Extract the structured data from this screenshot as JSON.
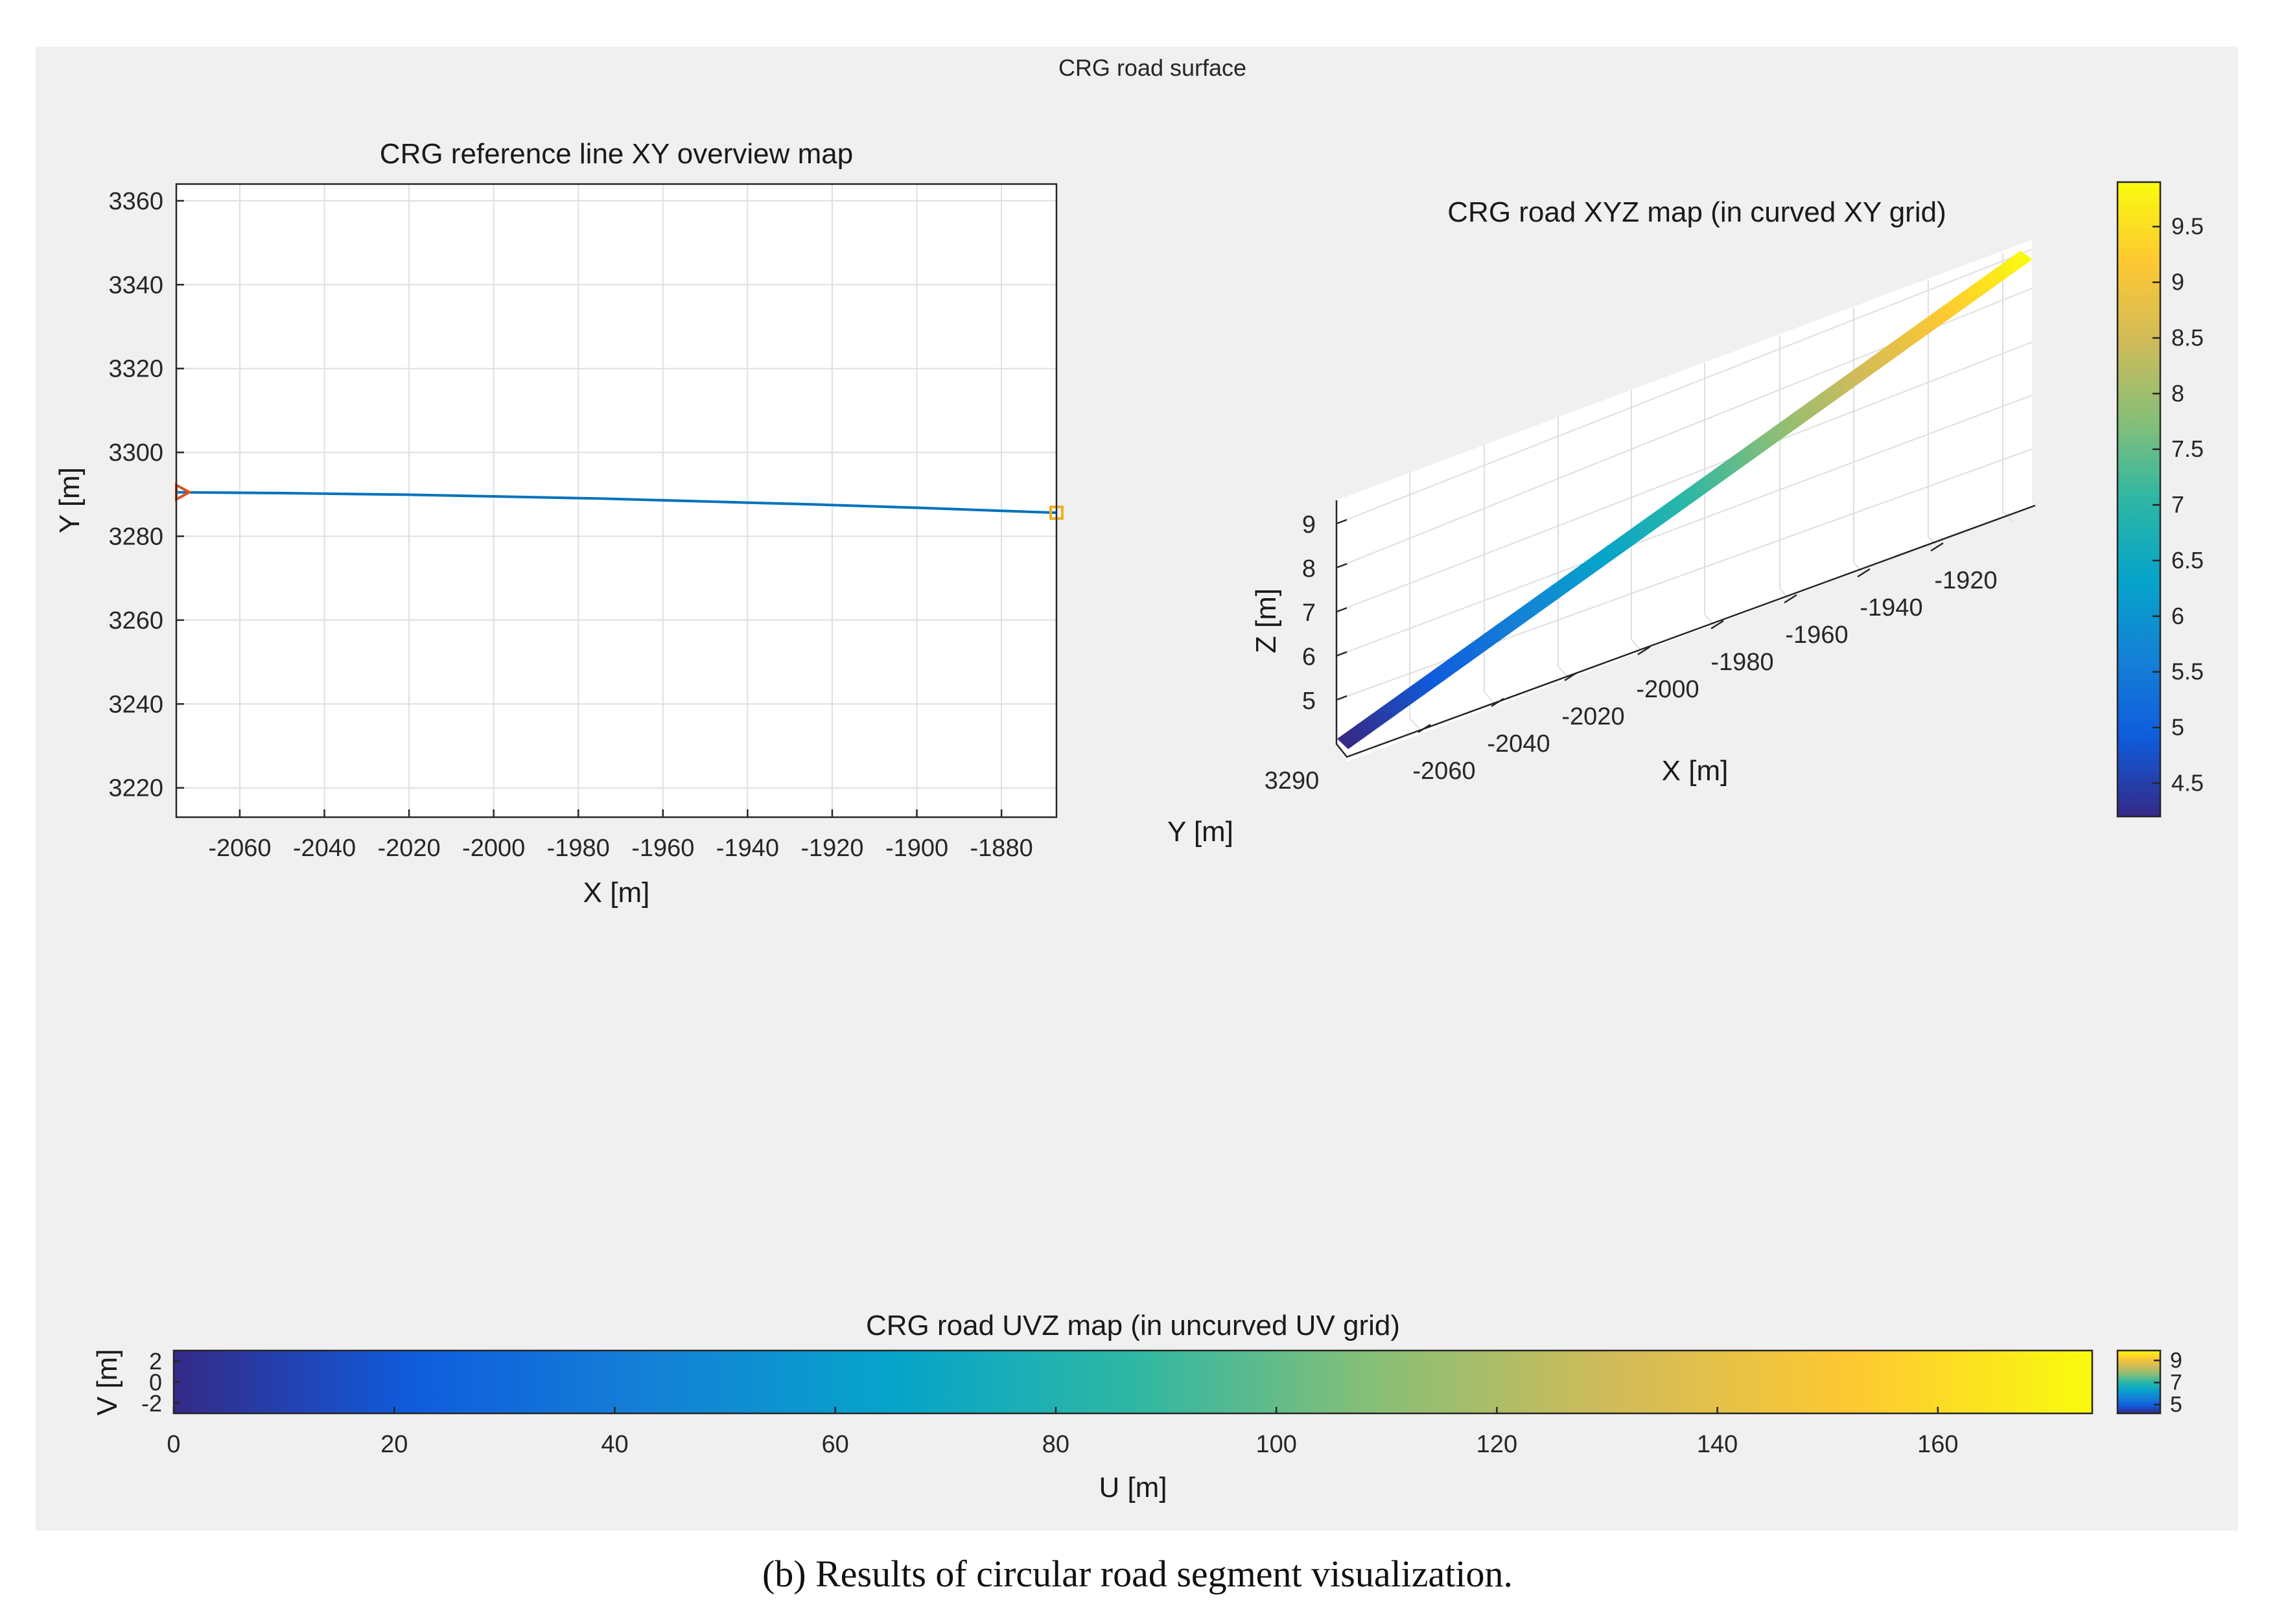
{
  "figure": {
    "window_title": "CRG road surface",
    "caption": "(b)  Results of circular road segment visualization."
  },
  "colors": {
    "panel_bg": "#f0f0f0",
    "axes_bg": "#ffffff",
    "grid": "#dfdfdf",
    "axis": "#262626",
    "line": "#0072bd",
    "start_marker": "#d95319",
    "end_marker": "#edb120"
  },
  "colormap_parula": [
    "#352a87",
    "#0f5cdd",
    "#1481d6",
    "#06a4ca",
    "#2eb7a4",
    "#87bf77",
    "#d1bb59",
    "#fec832",
    "#f9fb0e"
  ],
  "chart_data": [
    {
      "id": "xy_overview",
      "type": "line",
      "title": "CRG reference line XY overview map",
      "xlabel": "X [m]",
      "ylabel": "Y [m]",
      "xlim": [
        -2075,
        -1867
      ],
      "ylim": [
        3213,
        3364
      ],
      "xticks": [
        -2060,
        -2040,
        -2020,
        -2000,
        -1980,
        -1960,
        -1940,
        -1920,
        -1900,
        -1880
      ],
      "yticks": [
        3220,
        3240,
        3260,
        3280,
        3300,
        3320,
        3340,
        3360
      ],
      "grid": true,
      "series": [
        {
          "name": "reference line",
          "x": [
            -2075,
            -2050,
            -2020,
            -2000,
            -1975,
            -1950,
            -1925,
            -1900,
            -1867
          ],
          "y": [
            3290.5,
            3290.3,
            3289.9,
            3289.5,
            3289.0,
            3288.3,
            3287.6,
            3286.8,
            3285.6
          ]
        }
      ],
      "markers": {
        "start": {
          "x": -2075,
          "y": 3290.5,
          "symbol": "triangle"
        },
        "end": {
          "x": -1867,
          "y": 3285.6,
          "symbol": "square"
        }
      }
    },
    {
      "id": "xyz_surface",
      "type": "surface3d",
      "title": "CRG road XYZ map (in curved XY grid)",
      "xlabel": "X [m]",
      "ylabel": "Y [m]",
      "zlabel": "Z [m]",
      "xticks": [
        -2060,
        -2040,
        -2020,
        -2000,
        -1980,
        -1960,
        -1940,
        -1920
      ],
      "yticks": [
        3290
      ],
      "zticks": [
        5,
        6,
        7,
        8,
        9
      ],
      "xlim": [
        -2075,
        -1867
      ],
      "zlim": [
        4.2,
        9.9
      ],
      "x": [
        -2075,
        -1867
      ],
      "z": [
        4.2,
        9.9
      ],
      "colorbar": {
        "ticks": [
          4.5,
          5,
          5.5,
          6,
          6.5,
          7,
          7.5,
          8,
          8.5,
          9,
          9.5
        ],
        "range": [
          4.2,
          9.9
        ]
      }
    },
    {
      "id": "uvz_map",
      "type": "heatmap",
      "title": "CRG road UVZ map (in uncurved UV grid)",
      "xlabel": "U [m]",
      "ylabel": "V [m]",
      "xticks": [
        0,
        20,
        40,
        60,
        80,
        100,
        120,
        140,
        160
      ],
      "yticks": [
        -2,
        0,
        2
      ],
      "xlim": [
        0,
        174
      ],
      "ylim": [
        -3,
        3
      ],
      "z_range": [
        4.2,
        9.9
      ],
      "colorbar": {
        "ticks": [
          5,
          7,
          9
        ],
        "range": [
          4.2,
          9.9
        ]
      }
    }
  ]
}
